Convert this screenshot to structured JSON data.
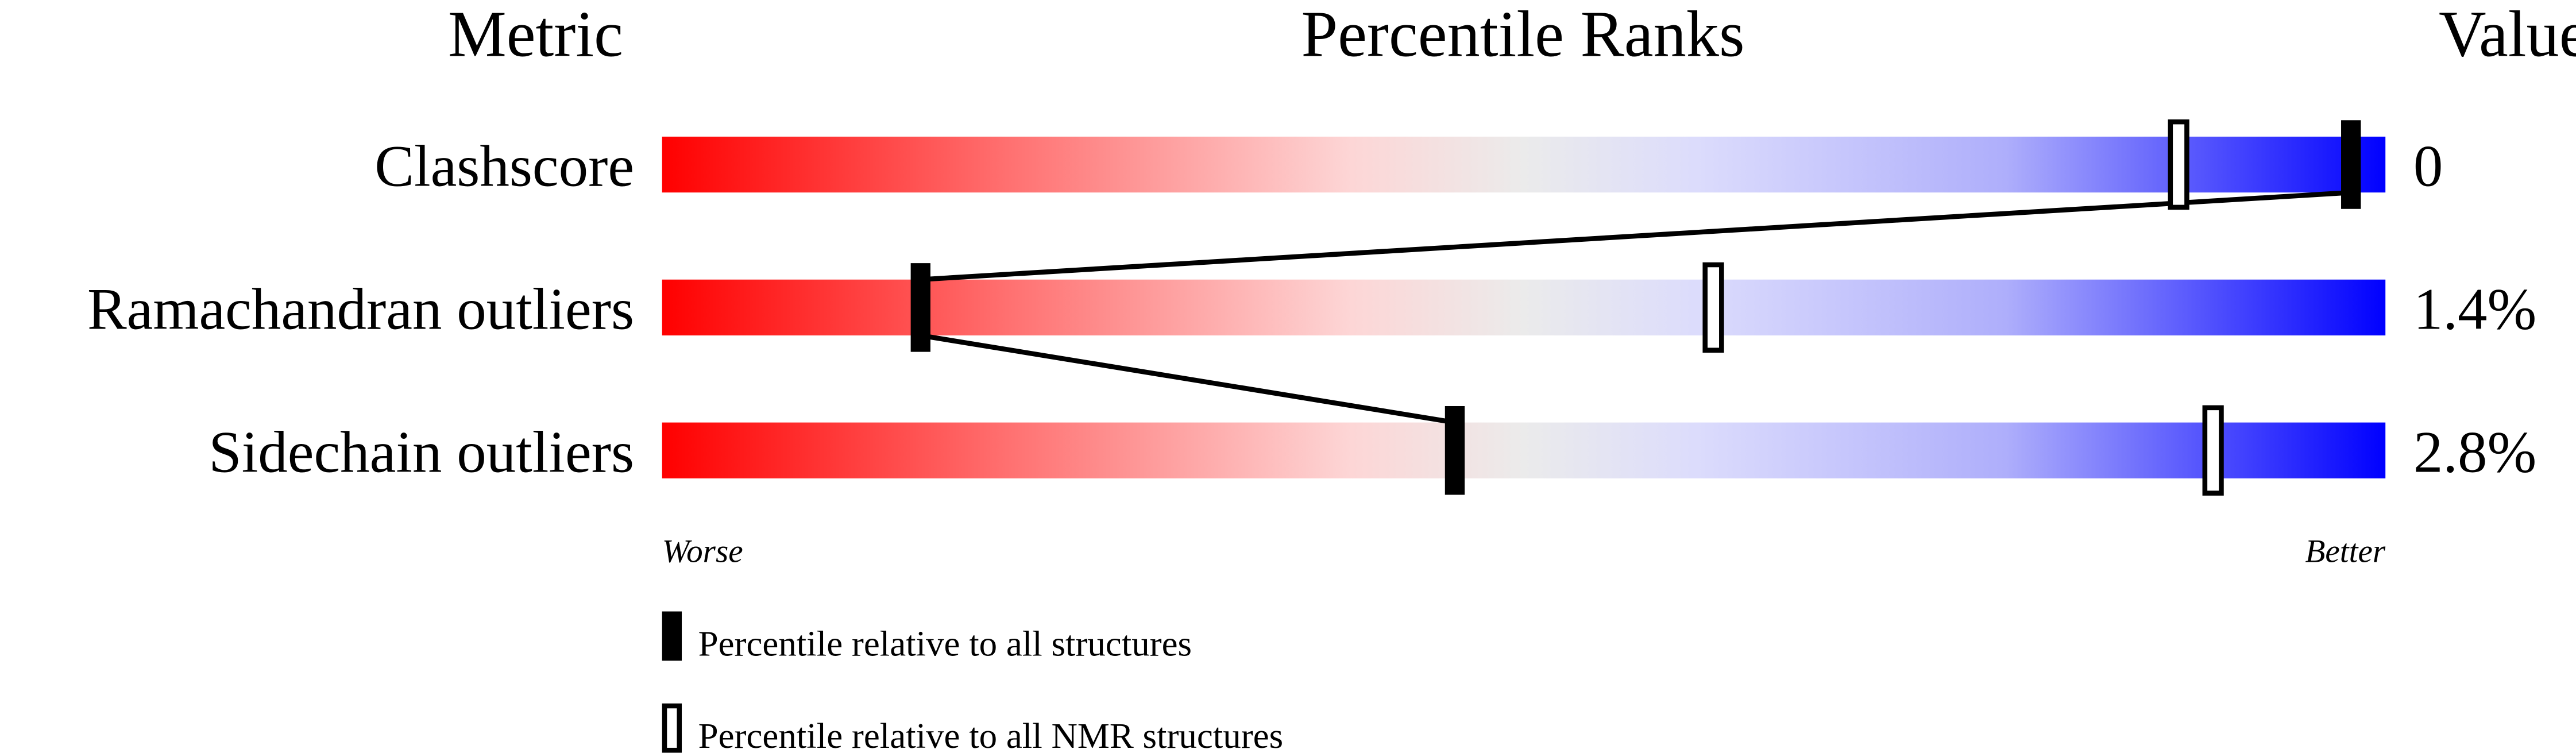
{
  "chart_data": {
    "type": "percentile-slider",
    "headers": {
      "metric": "Metric",
      "ranks": "Percentile Ranks",
      "value": "Value"
    },
    "xlim": [
      0,
      100
    ],
    "axis_ends": {
      "left": "Worse",
      "right": "Better"
    },
    "gradient_colors": {
      "worse": "#ff0000",
      "middle": "#ebebeb",
      "better": "#0000ff"
    },
    "metrics": [
      {
        "name": "Clashscore",
        "value": "0",
        "percentile_all": 98,
        "percentile_nmr": 88
      },
      {
        "name": "Ramachandran outliers",
        "value": "1.4%",
        "percentile_all": 15,
        "percentile_nmr": 61
      },
      {
        "name": "Sidechain outliers",
        "value": "2.8%",
        "percentile_all": 46,
        "percentile_nmr": 90
      }
    ],
    "legend": [
      {
        "marker": "filled",
        "label": "Percentile relative to all structures"
      },
      {
        "marker": "open",
        "label": "Percentile relative to all NMR structures"
      }
    ]
  }
}
